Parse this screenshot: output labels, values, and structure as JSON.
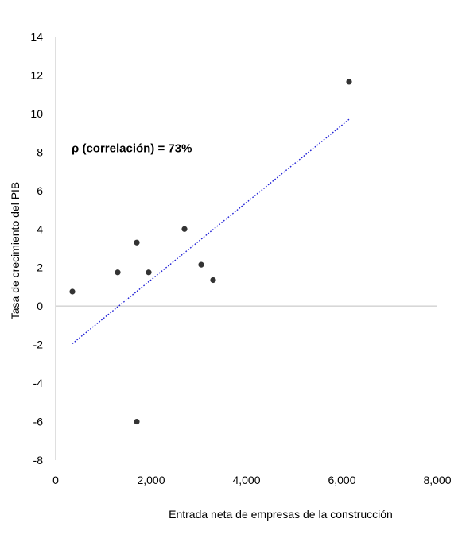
{
  "chart_data": {
    "type": "scatter",
    "title": "",
    "xlabel": "Entrada neta de empresas de la construcción",
    "ylabel": "Tasa de crecimiento del PIB",
    "xlim": [
      0,
      8000
    ],
    "ylim": [
      -8,
      14
    ],
    "x_ticks": [
      0,
      2000,
      4000,
      6000,
      8000
    ],
    "x_tick_labels": [
      "0",
      "2,000",
      "4,000",
      "6,000",
      "8,000"
    ],
    "y_ticks": [
      -8,
      -6,
      -4,
      -2,
      0,
      2,
      4,
      6,
      8,
      10,
      12,
      14
    ],
    "y_tick_labels": [
      "-8",
      "-6",
      "-4",
      "-2",
      "0",
      "2",
      "4",
      "6",
      "8",
      "10",
      "12",
      "14"
    ],
    "grid": false,
    "series": [
      {
        "points": [
          {
            "x": 350,
            "y": 0.75
          },
          {
            "x": 1300,
            "y": 1.75
          },
          {
            "x": 1700,
            "y": 3.3
          },
          {
            "x": 1700,
            "y": -6.0
          },
          {
            "x": 1950,
            "y": 1.75
          },
          {
            "x": 2700,
            "y": 4.0
          },
          {
            "x": 3050,
            "y": 2.15
          },
          {
            "x": 3300,
            "y": 1.35
          },
          {
            "x": 6150,
            "y": 11.65
          }
        ],
        "color": "#333333"
      }
    ],
    "trendline": {
      "type": "linear",
      "from": {
        "x": 350,
        "y": -1.95
      },
      "to": {
        "x": 6150,
        "y": 9.7
      },
      "color": "#1f1fd6",
      "style": "dotted"
    },
    "annotations": [
      {
        "text": "ρ (correlación) = 73%",
        "x": 500,
        "y": 8.0
      }
    ]
  }
}
